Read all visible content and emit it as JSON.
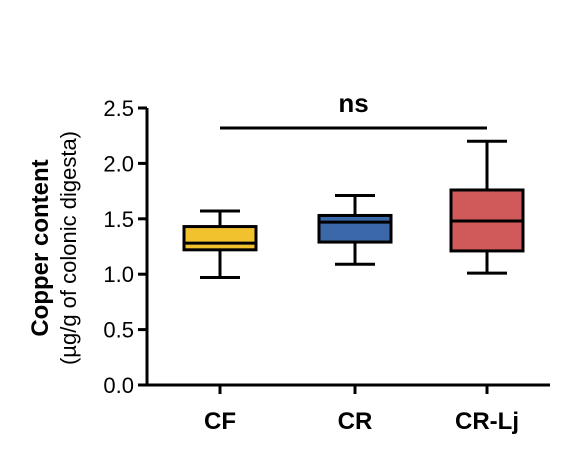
{
  "chart_data": {
    "type": "box",
    "title": "",
    "xlabel": "",
    "ylabel": "Copper content",
    "ylabel_sub": "(µg/g of colonic digesta)",
    "ylim": [
      0,
      2.5
    ],
    "yticks": [
      0.0,
      0.5,
      1.0,
      1.5,
      2.0,
      2.5
    ],
    "ytick_labels": [
      "0.0",
      "0.5",
      "1.0",
      "1.5",
      "2.0",
      "2.5"
    ],
    "categories": [
      "CF",
      "CR",
      "CR-Lj"
    ],
    "boxes": [
      {
        "category": "CF",
        "min": 0.97,
        "q1": 1.22,
        "median": 1.28,
        "q3": 1.43,
        "max": 1.57,
        "color": "#f2c12e"
      },
      {
        "category": "CR",
        "min": 1.09,
        "q1": 1.29,
        "median": 1.47,
        "q3": 1.53,
        "max": 1.71,
        "color": "#3b68a8"
      },
      {
        "category": "CR-Lj",
        "min": 1.01,
        "q1": 1.21,
        "median": 1.48,
        "q3": 1.76,
        "max": 2.2,
        "color": "#d05a5a"
      }
    ],
    "significance": {
      "label": "ns",
      "from": "CF",
      "to": "CR-Lj",
      "y": 2.32
    },
    "grid": false,
    "legend": "none"
  }
}
